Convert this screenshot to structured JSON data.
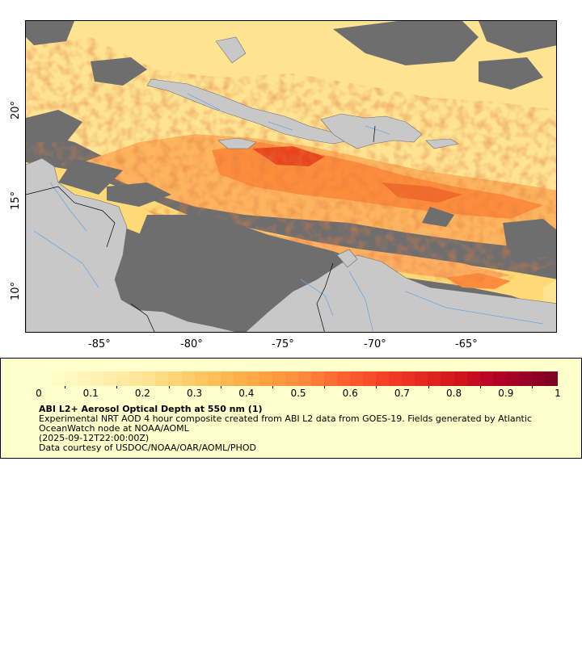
{
  "map": {
    "longitude_labels": [
      "-85°",
      "-80°",
      "-75°",
      "-70°",
      "-65°"
    ],
    "latitude_labels": [
      "20°",
      "15°",
      "10°"
    ],
    "colors": {
      "ocean_nodata": "#6e6e6e",
      "land": "#c8c8c8",
      "rivers": "#6fa8dc",
      "borders": "#707070"
    }
  },
  "legend": {
    "colorbar_ticks": [
      "0",
      "0.1",
      "0.2",
      "0.3",
      "0.4",
      "0.5",
      "0.6",
      "0.7",
      "0.8",
      "0.9",
      "1"
    ],
    "colorbar_colors": [
      "#ffffcc",
      "#fff1b2",
      "#fee391",
      "#fec863",
      "#fdac46",
      "#fd8d3c",
      "#fc5d2e",
      "#f03523",
      "#d7191c",
      "#b00026",
      "#800026"
    ],
    "title": "ABI L2+ Aerosol Optical Depth at 550 nm (1)",
    "description": "Experimental NRT AOD 4 hour composite created from ABI L2 data from GOES-19. Fields generated by Atlantic OceanWatch node at NOAA/AOML",
    "timestamp": "(2025-09-12T22:00:00Z)",
    "credit": "Data courtesy of USDOC/NOAA/OAR/AOML/PHOD"
  }
}
